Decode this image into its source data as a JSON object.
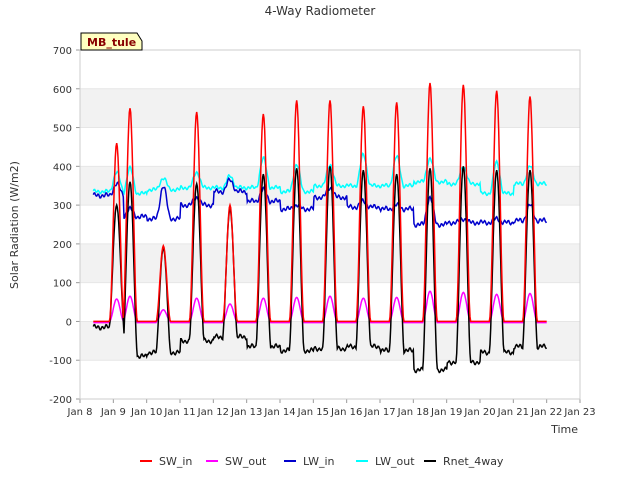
{
  "chart_data": {
    "type": "line",
    "title": "4-Way Radiometer",
    "xlabel": "Time",
    "ylabel": "Solar Radiation (W/m2)",
    "badge": "MB_tule",
    "ylim": [
      -200,
      700
    ],
    "xlim": [
      8,
      23
    ],
    "yticks": [
      -200,
      -100,
      0,
      100,
      200,
      300,
      400,
      500,
      600,
      700
    ],
    "xticks": [
      {
        "v": 8,
        "label": "Jan 8"
      },
      {
        "v": 9,
        "label": "Jan 9"
      },
      {
        "v": 10,
        "label": "Jan 10"
      },
      {
        "v": 11,
        "label": "Jan 11"
      },
      {
        "v": 12,
        "label": "Jan 12"
      },
      {
        "v": 13,
        "label": "Jan 13"
      },
      {
        "v": 14,
        "label": "Jan 14"
      },
      {
        "v": 15,
        "label": "Jan 15"
      },
      {
        "v": 16,
        "label": "Jan 16"
      },
      {
        "v": 17,
        "label": "Jan 17"
      },
      {
        "v": 18,
        "label": "Jan 18"
      },
      {
        "v": 19,
        "label": "Jan 19"
      },
      {
        "v": 20,
        "label": "Jan 20"
      },
      {
        "v": 21,
        "label": "Jan 21"
      },
      {
        "v": 22,
        "label": "Jan 22"
      },
      {
        "v": 23,
        "label": "Jan 23"
      }
    ],
    "series_meta": [
      {
        "name": "SW_in",
        "color": "#ff0000"
      },
      {
        "name": "SW_out",
        "color": "#ff00ff"
      },
      {
        "name": "LW_in",
        "color": "#0000cc"
      },
      {
        "name": "LW_out",
        "color": "#00ffff"
      },
      {
        "name": "Rnet_4way",
        "color": "#000000"
      }
    ],
    "days": [
      {
        "day": 8.6,
        "sw_in_peak": 460,
        "sw_out_peak": 58,
        "lw_in_day": 355,
        "lw_in_night": 325,
        "lw_out_day": 385,
        "lw_out_night": 335,
        "rnet_peak": 300,
        "rnet_night": -15
      },
      {
        "day": 9.0,
        "sw_in_peak": 550,
        "sw_out_peak": 65,
        "lw_in_day": 290,
        "lw_in_night": 270,
        "lw_out_day": 395,
        "lw_out_night": 330,
        "rnet_peak": 360,
        "rnet_night": -90
      },
      {
        "day": 10.0,
        "sw_in_peak": 195,
        "sw_out_peak": 30,
        "lw_in_day": 350,
        "lw_in_night": 265,
        "lw_out_day": 370,
        "lw_out_night": 340,
        "rnet_peak": 190,
        "rnet_night": -80
      },
      {
        "day": 11.0,
        "sw_in_peak": 540,
        "sw_out_peak": 60,
        "lw_in_day": 320,
        "lw_in_night": 300,
        "lw_out_day": 385,
        "lw_out_night": 345,
        "rnet_peak": 355,
        "rnet_night": -50
      },
      {
        "day": 12.0,
        "sw_in_peak": 300,
        "sw_out_peak": 45,
        "lw_in_day": 365,
        "lw_in_night": 335,
        "lw_out_day": 375,
        "lw_out_night": 345,
        "rnet_peak": 290,
        "rnet_night": -40
      },
      {
        "day": 13.0,
        "sw_in_peak": 535,
        "sw_out_peak": 60,
        "lw_in_day": 340,
        "lw_in_night": 310,
        "lw_out_day": 420,
        "lw_out_night": 345,
        "rnet_peak": 380,
        "rnet_night": -65
      },
      {
        "day": 14.0,
        "sw_in_peak": 570,
        "sw_out_peak": 62,
        "lw_in_day": 300,
        "lw_in_night": 290,
        "lw_out_day": 405,
        "lw_out_night": 335,
        "rnet_peak": 395,
        "rnet_night": -75
      },
      {
        "day": 15.0,
        "sw_in_peak": 570,
        "sw_out_peak": 65,
        "lw_in_day": 345,
        "lw_in_night": 320,
        "lw_out_day": 405,
        "lw_out_night": 350,
        "rnet_peak": 400,
        "rnet_night": -70
      },
      {
        "day": 16.0,
        "sw_in_peak": 555,
        "sw_out_peak": 60,
        "lw_in_day": 310,
        "lw_in_night": 295,
        "lw_out_day": 430,
        "lw_out_night": 350,
        "rnet_peak": 390,
        "rnet_night": -65
      },
      {
        "day": 17.0,
        "sw_in_peak": 565,
        "sw_out_peak": 62,
        "lw_in_day": 300,
        "lw_in_night": 290,
        "lw_out_day": 425,
        "lw_out_night": 350,
        "rnet_peak": 380,
        "rnet_night": -75
      },
      {
        "day": 18.0,
        "sw_in_peak": 615,
        "sw_out_peak": 78,
        "lw_in_day": 320,
        "lw_in_night": 250,
        "lw_out_day": 420,
        "lw_out_night": 360,
        "rnet_peak": 395,
        "rnet_night": -125
      },
      {
        "day": 19.0,
        "sw_in_peak": 610,
        "sw_out_peak": 75,
        "lw_in_day": 265,
        "lw_in_night": 255,
        "lw_out_day": 400,
        "lw_out_night": 355,
        "rnet_peak": 400,
        "rnet_night": -105
      },
      {
        "day": 20.0,
        "sw_in_peak": 595,
        "sw_out_peak": 70,
        "lw_in_day": 265,
        "lw_in_night": 255,
        "lw_out_day": 410,
        "lw_out_night": 330,
        "rnet_peak": 390,
        "rnet_night": -80
      },
      {
        "day": 21.0,
        "sw_in_peak": 580,
        "sw_out_peak": 72,
        "lw_in_day": 300,
        "lw_in_night": 260,
        "lw_out_day": 400,
        "lw_out_night": 355,
        "rnet_peak": 390,
        "rnet_night": -65
      }
    ]
  }
}
